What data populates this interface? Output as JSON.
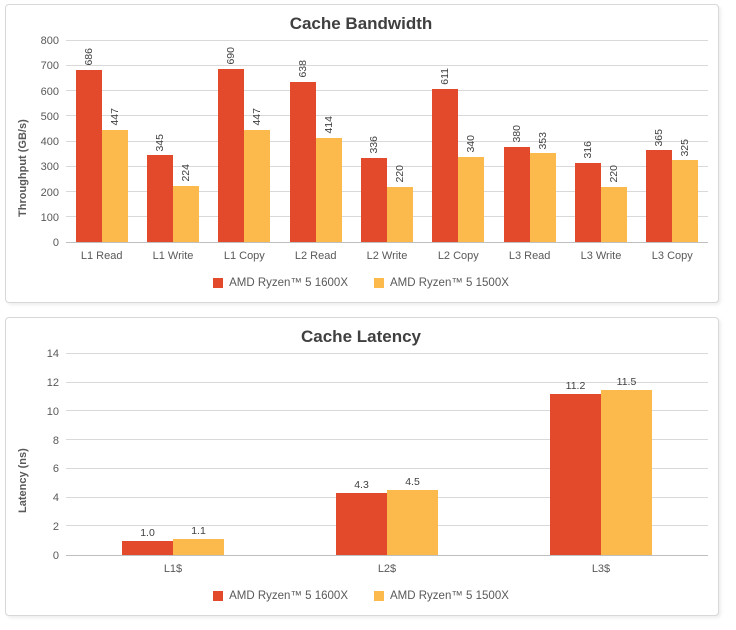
{
  "style": {
    "series1_color": "#E3492B",
    "series2_color": "#FBBA4B",
    "title_color": "#404040",
    "axis_text_color": "#595959",
    "gridline_color": "#D9D9D9",
    "axis_line_color": "#BFBFBF",
    "card_border_color": "#D8D8D8",
    "background": "#FFFFFF"
  },
  "chart_data": [
    {
      "type": "bar",
      "title": "Cache Bandwidth",
      "ylabel": "Throughput (GB/s)",
      "xlabel": "",
      "ylim": [
        0,
        800
      ],
      "ytick_step": 100,
      "grid": true,
      "legend_position": "bottom",
      "value_labels": "rotated",
      "value_format": "int",
      "categories": [
        "L1 Read",
        "L1 Write",
        "L1 Copy",
        "L2 Read",
        "L2 Write",
        "L2 Copy",
        "L3 Read",
        "L3 Write",
        "L3 Copy"
      ],
      "series": [
        {
          "name": "AMD Ryzen™ 5 1600X",
          "color": "#E3492B",
          "values": [
            686,
            345,
            690,
            638,
            336,
            611,
            380,
            316,
            365
          ]
        },
        {
          "name": "AMD Ryzen™ 5 1500X",
          "color": "#FBBA4B",
          "values": [
            447,
            224,
            447,
            414,
            220,
            340,
            353,
            220,
            325
          ]
        }
      ]
    },
    {
      "type": "bar",
      "title": "Cache Latency",
      "ylabel": "Latency (ns)",
      "xlabel": "",
      "ylim": [
        0,
        14
      ],
      "ytick_step": 2,
      "grid": true,
      "legend_position": "bottom",
      "value_labels": "horizontal",
      "value_format": "0.0",
      "categories": [
        "L1$",
        "L2$",
        "L3$"
      ],
      "series": [
        {
          "name": "AMD Ryzen™ 5 1600X",
          "color": "#E3492B",
          "values": [
            1.0,
            4.3,
            11.2
          ]
        },
        {
          "name": "AMD Ryzen™ 5 1500X",
          "color": "#FBBA4B",
          "values": [
            1.1,
            4.5,
            11.5
          ]
        }
      ]
    }
  ]
}
